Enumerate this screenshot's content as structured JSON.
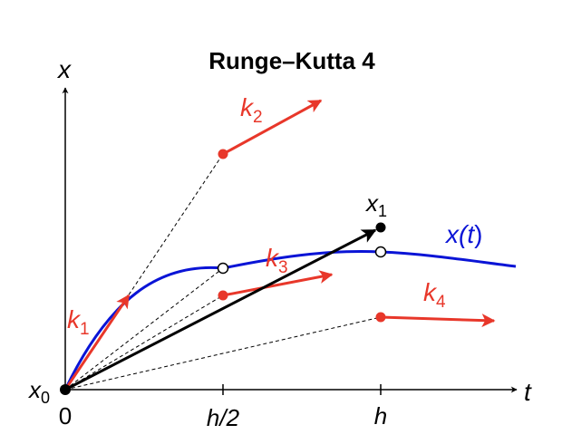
{
  "title": "Runge–Kutta 4",
  "axis": {
    "x_label": "x",
    "t_label": "t",
    "x0_label": "x",
    "x0_sub": "0",
    "ticks": [
      "0",
      "h/2",
      "h"
    ]
  },
  "curve": {
    "label_prefix": "x(",
    "label_var": "t",
    "label_suffix": ")"
  },
  "endpoint": {
    "label": "x",
    "sub": "1"
  },
  "slopes": [
    {
      "label": "k",
      "sub": "1"
    },
    {
      "label": "k",
      "sub": "2"
    },
    {
      "label": "k",
      "sub": "3"
    },
    {
      "label": "k",
      "sub": "4"
    }
  ],
  "colors": {
    "curve": "#0a14d6",
    "slope": "#e8372a",
    "axis": "#000000",
    "guide": "#000000"
  }
}
